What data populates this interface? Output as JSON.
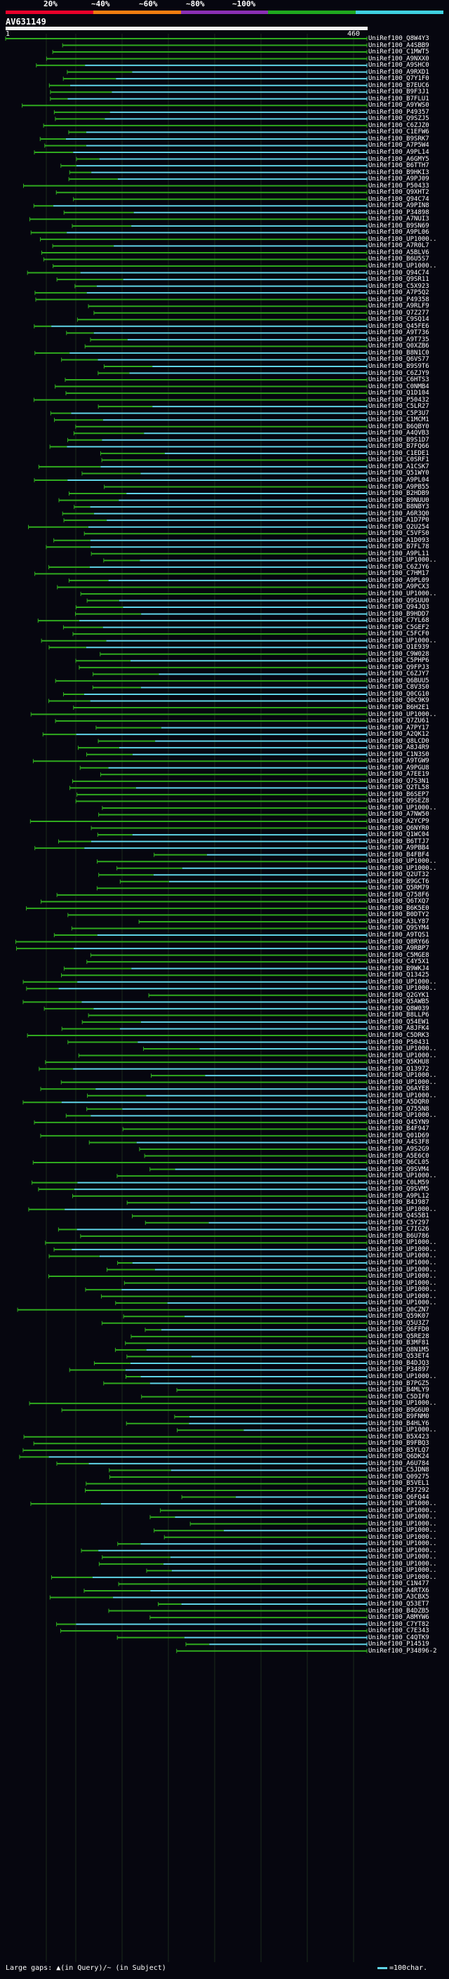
{
  "scale": {
    "labels": [
      "20%",
      "~40%",
      "~60%",
      "~80%",
      "~100%"
    ],
    "colors": [
      "#e8002a",
      "#f07c10",
      "#8a2fb5",
      "#1fa81f",
      "#3fd0e0"
    ]
  },
  "query": {
    "title": "AV631149",
    "start": "1",
    "end": "460"
  },
  "colors": {
    "background": "#06060f",
    "high_identity": "#5fd4e6",
    "mid_identity": "#2faa1e",
    "query_bar": "#f2f2f2",
    "grid": "#1b2a1b"
  },
  "hits": [
    "UniRef100_Q8W4Y3",
    "UniRef100_A4SBB9",
    "UniRef100_C1MWT5",
    "UniRef100_A9NXX0",
    "UniRef100_A9SHC0",
    "UniRef100_A9RXD1",
    "UniRef100_Q7Y1F0",
    "UniRef100_B7EUC6",
    "UniRef100_B9F3J1",
    "UniRef100_B7FLU1",
    "UniRef100_A9YWS0",
    "UniRef100_P49357",
    "UniRef100_Q9SZJ5",
    "UniRef100_C6ZJZ0",
    "UniRef100_C1EFW6",
    "UniRef100_B9SRK7",
    "UniRef100_A7P5W4",
    "UniRef100_A9PL14",
    "UniRef100_A6GMY5",
    "UniRef100_B6TTH7",
    "UniRef100_B9HKI3",
    "UniRef100_A9PJ09",
    "UniRef100_P50433",
    "UniRef100_Q9XHT2",
    "UniRef100_Q94C74",
    "UniRef100_A9PIN8",
    "UniRef100_P34898",
    "UniRef100_A7NUI3",
    "UniRef100_B9SN69",
    "UniRef100_A9PL06",
    "UniRef100_UP1000..",
    "UniRef100_A7R0L7",
    "UniRef100_A5BLV6",
    "UniRef100_B6U5S7",
    "UniRef100_UP1000..",
    "UniRef100_Q94C74",
    "UniRef100_Q9SR11",
    "UniRef100_C5X923",
    "UniRef100_A7P5Q2",
    "UniRef100_P49358",
    "UniRef100_A9RLF9",
    "UniRef100_Q7Z277",
    "UniRef100_C9SQ14",
    "UniRef100_Q45FE6",
    "UniRef100_A9T736",
    "UniRef100_A9T735",
    "UniRef100_Q0XZB6",
    "UniRef100_B8N1C0",
    "UniRef100_Q6VS77",
    "UniRef100_B9S9T6",
    "UniRef100_C6ZJY9",
    "UniRef100_C6HTS3",
    "UniRef100_C0NMB4",
    "UniRef100_Q1D104",
    "UniRef100_P50432",
    "UniRef100_C5LR27",
    "UniRef100_C5P3U7",
    "UniRef100_C1MCM1",
    "UniRef100_B6QBY0",
    "UniRef100_A4QVB3",
    "UniRef100_B9S1D7",
    "UniRef100_B7FQ66",
    "UniRef100_C1EDE1",
    "UniRef100_C0SRF1",
    "UniRef100_A1CSK7",
    "UniRef100_Q51WY0",
    "UniRef100_A9PL04",
    "UniRef100_A9PB55",
    "UniRef100_B2HDB9",
    "UniRef100_B9NUU0",
    "UniRef100_B8NBY3",
    "UniRef100_A6R3Q0",
    "UniRef100_A1D7P0",
    "UniRef100_Q2U254",
    "UniRef100_C5VFS0",
    "UniRef100_A1D093",
    "UniRef100_B7FL78",
    "UniRef100_A9PL11",
    "UniRef100_UP1000..",
    "UniRef100_C6ZJY6",
    "UniRef100_C7HM17",
    "UniRef100_A9PL09",
    "UniRef100_A9PCX3",
    "UniRef100_UP1000..",
    "UniRef100_Q9SUU0",
    "UniRef100_Q94JQ3",
    "UniRef100_B9HDD7",
    "UniRef100_C7YL68",
    "UniRef100_C5GEF2",
    "UniRef100_C5FCF0",
    "UniRef100_UP1000..",
    "UniRef100_Q1E939",
    "UniRef100_C9W028",
    "UniRef100_C5PHP6",
    "UniRef100_Q9FPJ3",
    "UniRef100_C6ZJY7",
    "UniRef100_Q6BUU5",
    "UniRef100_C8V3S0",
    "UniRef100_Q0CG10",
    "UniRef100_Q0C9K9",
    "UniRef100_B6H2E1",
    "UniRef100_UP1000..",
    "UniRef100_Q7ZU61",
    "UniRef100_A7PY17",
    "UniRef100_A2QK12",
    "UniRef100_Q8LCD0",
    "UniRef100_A8J4R9",
    "UniRef100_C1N3S0",
    "UniRef100_A9TGW9",
    "UniRef100_A9PGU8",
    "UniRef100_A7EE19",
    "UniRef100_Q7S3N1",
    "UniRef100_Q2TL58",
    "UniRef100_B6SEP7",
    "UniRef100_Q9SEZ8",
    "UniRef100_UP1000..",
    "UniRef100_A7NW50",
    "UniRef100_A2YCP9",
    "UniRef100_Q6NYR0",
    "UniRef100_Q1WC04",
    "UniRef100_B6TTJ7",
    "UniRef100_A9PBB4",
    "UniRef100_B4FBF4",
    "UniRef100_UP1000..",
    "UniRef100_UP1000..",
    "UniRef100_Q2UT32",
    "UniRef100_B9GCT6",
    "UniRef100_Q5RM79",
    "UniRef100_Q758F6",
    "UniRef100_Q6TXQ7",
    "UniRef100_B6K5E0",
    "UniRef100_B0DTY2",
    "UniRef100_A3LY87",
    "UniRef100_Q9SYM4",
    "UniRef100_A9TQS1",
    "UniRef100_Q8RY66",
    "UniRef100_A9RBP7",
    "UniRef100_C5MGE8",
    "UniRef100_C4Y5X1",
    "UniRef100_B9WKJ4",
    "UniRef100_Q13425",
    "UniRef100_UP1000..",
    "UniRef100_UP1000..",
    "UniRef100_Q2GYK1",
    "UniRef100_Q5AWB5",
    "UniRef100_Q8W039",
    "UniRef100_B8LLP6",
    "UniRef100_Q54EW1",
    "UniRef100_A8JFK4",
    "UniRef100_C5DRK3",
    "UniRef100_P50431",
    "UniRef100_UP1000..",
    "UniRef100_UP1000..",
    "UniRef100_Q5KHU8",
    "UniRef100_Q13972",
    "UniRef100_UP1000..",
    "UniRef100_UP1000..",
    "UniRef100_Q6AYE8",
    "UniRef100_UP1000..",
    "UniRef100_A5DQR0",
    "UniRef100_Q755N8",
    "UniRef100_UP1000..",
    "UniRef100_Q45YN9",
    "UniRef100_B4F947",
    "UniRef100_Q01D69",
    "UniRef100_A4S3F8",
    "UniRef100_A9S2G9",
    "UniRef100_A5E6C0",
    "UniRef100_Q6CL05",
    "UniRef100_Q9SVM4",
    "UniRef100_UP1000..",
    "UniRef100_C0LM59",
    "UniRef100_Q9SVM5",
    "UniRef100_A9PL12",
    "UniRef100_B4J987",
    "UniRef100_UP1000..",
    "UniRef100_Q4S5B1",
    "UniRef100_C5Y297",
    "UniRef100_C7IG26",
    "UniRef100_B6U786",
    "UniRef100_UP1000..",
    "UniRef100_UP1000..",
    "UniRef100_UP1000..",
    "UniRef100_UP1000..",
    "UniRef100_UP1000..",
    "UniRef100_UP1000..",
    "UniRef100_UP1000..",
    "UniRef100_UP1000..",
    "UniRef100_UP1000..",
    "UniRef100_UP1000..",
    "UniRef100_Q0CZN7",
    "UniRef100_Q59K07",
    "UniRef100_Q5U3Z7",
    "UniRef100_Q6FFD0",
    "UniRef100_Q5RE28",
    "UniRef100_B3MF81",
    "UniRef100_Q8N1M5",
    "UniRef100_Q53ET4",
    "UniRef100_B4DJQ3",
    "UniRef100_P34897",
    "UniRef100_UP1000..",
    "UniRef100_B7PGZ5",
    "UniRef100_B4MLY9",
    "UniRef100_C5DIF0",
    "UniRef100_UP1000..",
    "UniRef100_B9G6U0",
    "UniRef100_B9FNM0",
    "UniRef100_B4HLY6",
    "UniRef100_UP1000..",
    "UniRef100_B5X423",
    "UniRef100_B9FBQ3",
    "UniRef100_B5YLQ7",
    "UniRef100_Q6DK24",
    "UniRef100_A6U784",
    "UniRef100_C5JDN8",
    "UniRef100_Q09275",
    "UniRef100_B5VEL1",
    "UniRef100_P37292",
    "UniRef100_Q6FQ44",
    "UniRef100_UP1000..",
    "UniRef100_UP1000..",
    "UniRef100_UP1000..",
    "UniRef100_UP1000..",
    "UniRef100_UP1000..",
    "UniRef100_UP1000..",
    "UniRef100_UP1000..",
    "UniRef100_UP1000..",
    "UniRef100_UP1000..",
    "UniRef100_UP1000..",
    "UniRef100_UP1000..",
    "UniRef100_UP1000..",
    "UniRef100_C1N477",
    "UniRef100_A4RTX6",
    "UniRef100_A3CBX5",
    "UniRef100_Q53ET7",
    "UniRef100_B4DZB5",
    "UniRef100_A8MYW6",
    "UniRef100_C7YT82",
    "UniRef100_C7E343",
    "UniRef100_C4QTK9",
    "UniRef100_P14519",
    "UniRef100_P34896-2"
  ],
  "legend": {
    "text": "Large gaps: ▲(in Query)/~ (in Subject)",
    "scale_text": "=100char."
  }
}
